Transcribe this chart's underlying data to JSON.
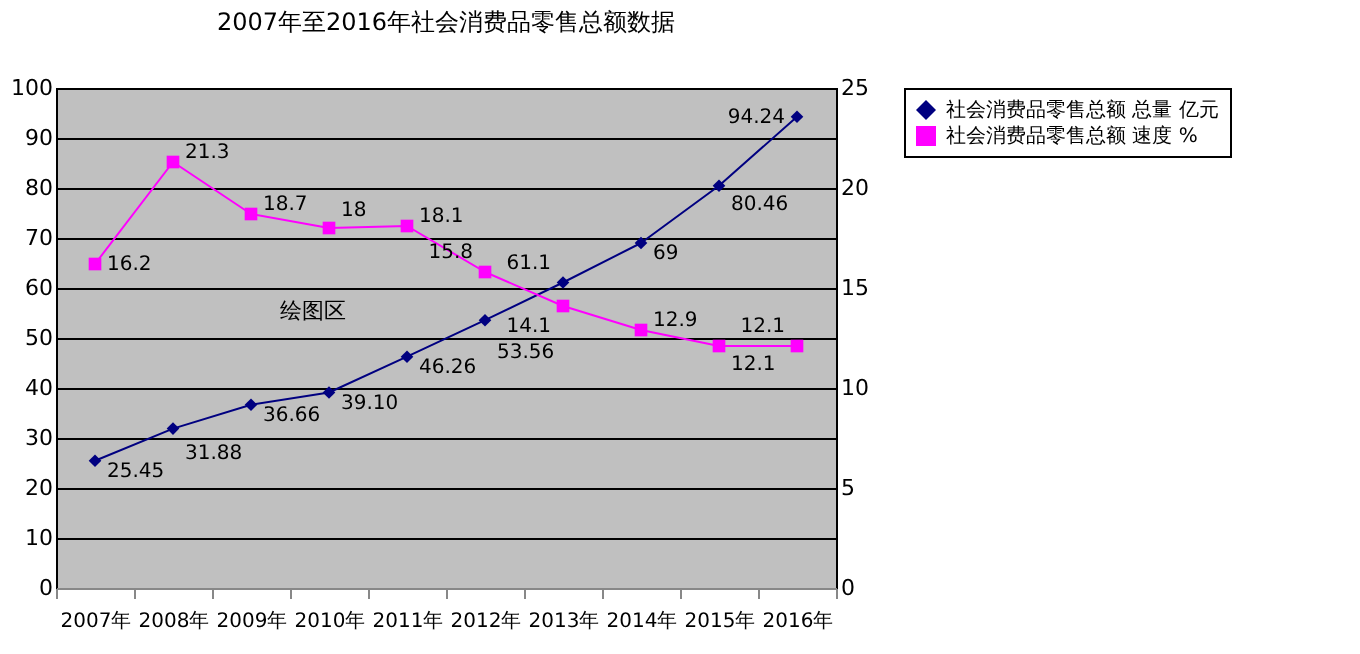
{
  "chart_data": {
    "type": "line",
    "title": "2007年至2016年社会消费品零售总额数据",
    "categories": [
      "2007年",
      "2008年",
      "2009年",
      "2010年",
      "2011年",
      "2012年",
      "2013年",
      "2014年",
      "2015年",
      "2016年"
    ],
    "series": [
      {
        "name": "社会消费品零售总额 总量 亿元",
        "color": "#000080",
        "marker": "diamond",
        "values": [
          25.45,
          31.88,
          36.66,
          39.1,
          46.26,
          53.56,
          61.1,
          69,
          80.46,
          94.24
        ],
        "value_labels": [
          "25.45",
          "31.88",
          "36.66",
          "39.10",
          "46.26",
          "53.56",
          "61.1",
          "69",
          "80.46",
          "94.24"
        ]
      },
      {
        "name": "社会消费品零售总额 速度 %",
        "color": "#ff00ff",
        "marker": "square",
        "axis": "y2",
        "values": [
          16.2,
          21.3,
          18.7,
          18,
          18.1,
          15.8,
          14.1,
          12.9,
          12.1,
          12.1
        ],
        "value_labels": [
          "16.2",
          "21.3",
          "18.7",
          "18",
          "18.1",
          "15.8",
          "14.1",
          "12.9",
          "12.1",
          "12.1"
        ]
      }
    ],
    "ylim": [
      0,
      100
    ],
    "yticks": [
      0,
      10,
      20,
      30,
      40,
      50,
      60,
      70,
      80,
      90,
      100
    ],
    "y2lim": [
      0,
      25
    ],
    "y2ticks": [
      0,
      5,
      10,
      15,
      20,
      25
    ],
    "grid": "y",
    "legend": "right",
    "line_style": "solid",
    "annotations": [
      "绘图区"
    ]
  }
}
